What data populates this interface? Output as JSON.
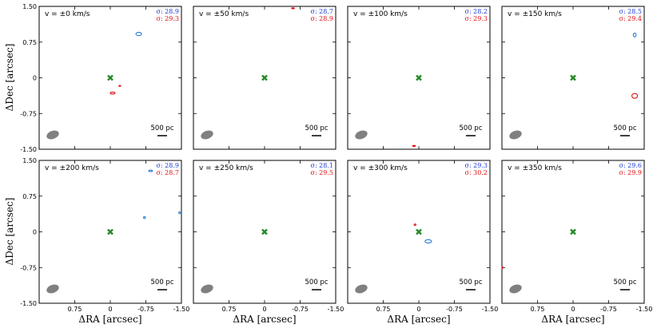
{
  "chart_data": {
    "type": "contour-grid",
    "xlabel": "ΔRA [arcsec]",
    "ylabel": "ΔDec [arcsec]",
    "xlim": [
      1.5,
      -1.5
    ],
    "ylim": [
      -1.5,
      1.5
    ],
    "x_tick_labels": [
      "0.75",
      "0",
      "-0.75",
      "-1.50"
    ],
    "y_tick_labels": [
      "1.50",
      "0.75",
      "0",
      "-0.75",
      "-1.50"
    ],
    "scale_bar_label": "500 pc",
    "colors": {
      "blue": "#1f3fd6",
      "red": "#e01010",
      "center_marker": "#2a8a2a",
      "beam": "#808080"
    },
    "panels": [
      {
        "velocity": "v = ±0 km/s",
        "sigma_blue": "σ: 28.9",
        "sigma_red": "σ: 29.3",
        "contours": [
          {
            "x": -0.6,
            "y": 0.92,
            "rx": 0.06,
            "ry": 0.035,
            "color": "blue"
          },
          {
            "x": -0.2,
            "y": -0.17,
            "rx": 0.02,
            "ry": 0.01,
            "color": "red"
          },
          {
            "x": -0.05,
            "y": -0.32,
            "rx": 0.05,
            "ry": 0.02,
            "color": "red"
          }
        ]
      },
      {
        "velocity": "v = ±50 km/s",
        "sigma_blue": "σ: 28.7",
        "sigma_red": "σ: 28.9",
        "contours": [
          {
            "x": -0.6,
            "y": 1.46,
            "rx": 0.03,
            "ry": 0.01,
            "color": "red"
          }
        ]
      },
      {
        "velocity": "v = ±100 km/s",
        "sigma_blue": "σ: 28.2",
        "sigma_red": "σ: 29.3",
        "contours": [
          {
            "x": 0.1,
            "y": -1.43,
            "rx": 0.03,
            "ry": 0.01,
            "color": "red"
          }
        ]
      },
      {
        "velocity": "v = ±150 km/s",
        "sigma_blue": "σ: 28.5",
        "sigma_red": "σ: 29.4",
        "contours": [
          {
            "x": -1.3,
            "y": 0.9,
            "rx": 0.03,
            "ry": 0.04,
            "color": "blue"
          },
          {
            "x": -1.3,
            "y": -0.38,
            "rx": 0.06,
            "ry": 0.05,
            "color": "red"
          }
        ]
      },
      {
        "velocity": "v = ±200 km/s",
        "sigma_blue": "σ: 28.9",
        "sigma_red": "σ: 28.7",
        "contours": [
          {
            "x": -0.85,
            "y": 1.28,
            "rx": 0.04,
            "ry": 0.015,
            "color": "blue"
          },
          {
            "x": -0.72,
            "y": 0.3,
            "rx": 0.02,
            "ry": 0.02,
            "color": "blue"
          },
          {
            "x": -1.46,
            "y": 0.4,
            "rx": 0.015,
            "ry": 0.02,
            "color": "blue"
          }
        ]
      },
      {
        "velocity": "v = ±250 km/s",
        "sigma_blue": "σ: 28.1",
        "sigma_red": "σ: 29.5",
        "contours": []
      },
      {
        "velocity": "v = ±300 km/s",
        "sigma_blue": "σ: 29.3",
        "sigma_red": "σ: 30.2",
        "contours": [
          {
            "x": 0.08,
            "y": 0.15,
            "rx": 0.02,
            "ry": 0.015,
            "color": "red"
          },
          {
            "x": -0.2,
            "y": -0.2,
            "rx": 0.07,
            "ry": 0.035,
            "color": "blue"
          }
        ]
      },
      {
        "velocity": "v = ±350 km/s",
        "sigma_blue": "σ: 29.6",
        "sigma_red": "σ: 29.9",
        "contours": [
          {
            "x": 1.49,
            "y": -0.75,
            "rx": 0.01,
            "ry": 0.015,
            "color": "red"
          }
        ]
      }
    ]
  }
}
